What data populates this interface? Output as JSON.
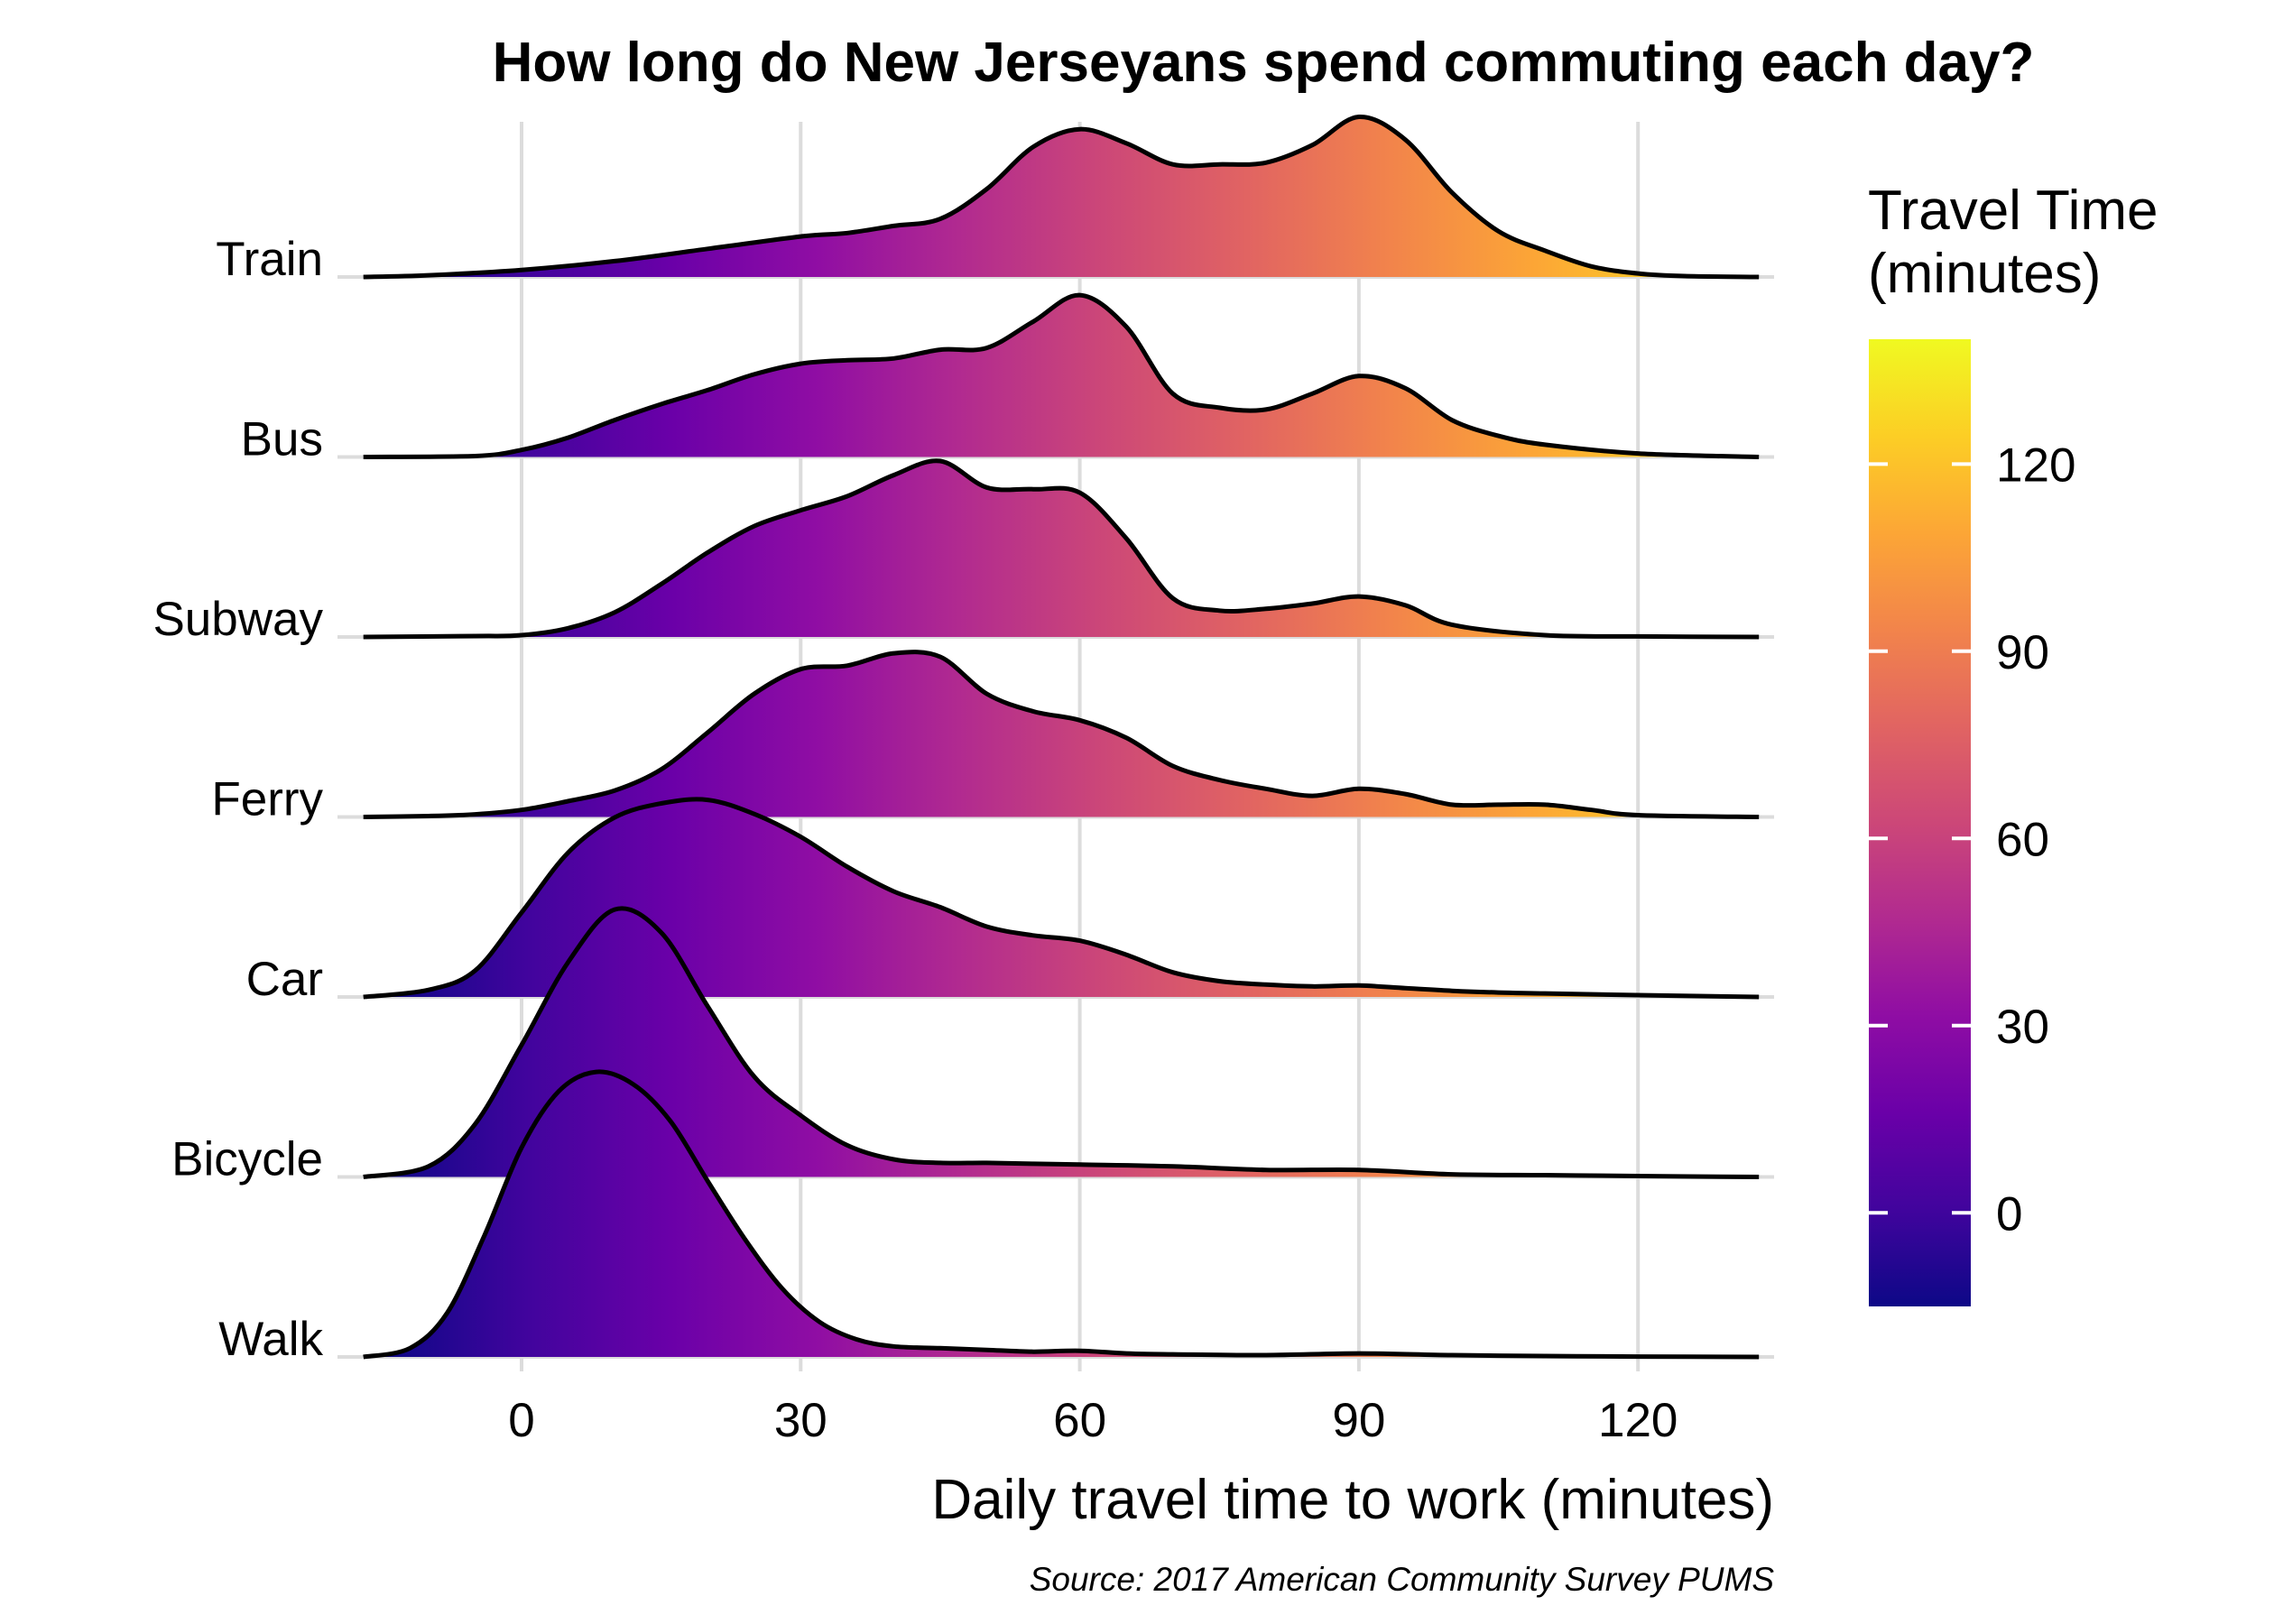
{
  "chart_data": {
    "type": "ridgeline",
    "title": "How long do New Jerseyans spend commuting each day?",
    "xlabel": "Daily travel time to work (minutes)",
    "ylabel": "",
    "caption": "Source: 2017 American Community Survey PUMS",
    "xlim": [
      -17,
      133
    ],
    "x_ticks": [
      0,
      30,
      60,
      90,
      120
    ],
    "x_tick_labels": [
      "0",
      "30",
      "60",
      "90",
      "120"
    ],
    "grid": true,
    "categories": [
      "Train",
      "Bus",
      "Subway",
      "Ferry",
      "Car",
      "Bicycle",
      "Walk"
    ],
    "series": [
      {
        "name": "Train",
        "x": [
          -17,
          -10,
          0,
          10,
          20,
          30,
          35,
          40,
          45,
          50,
          55,
          60,
          65,
          70,
          75,
          80,
          85,
          90,
          95,
          100,
          105,
          110,
          115,
          120,
          125,
          133
        ],
        "y": [
          0,
          0.01,
          0.04,
          0.09,
          0.16,
          0.23,
          0.25,
          0.29,
          0.33,
          0.5,
          0.74,
          0.84,
          0.76,
          0.64,
          0.64,
          0.65,
          0.75,
          0.91,
          0.78,
          0.48,
          0.26,
          0.15,
          0.06,
          0.02,
          0.005,
          0
        ]
      },
      {
        "name": "Bus",
        "x": [
          -17,
          -5,
          0,
          5,
          10,
          15,
          20,
          25,
          30,
          35,
          40,
          45,
          50,
          55,
          60,
          65,
          70,
          75,
          80,
          85,
          90,
          95,
          100,
          105,
          110,
          120,
          133
        ],
        "y": [
          0,
          0.005,
          0.04,
          0.11,
          0.21,
          0.3,
          0.38,
          0.47,
          0.53,
          0.55,
          0.56,
          0.61,
          0.62,
          0.77,
          0.92,
          0.74,
          0.36,
          0.28,
          0.27,
          0.36,
          0.46,
          0.39,
          0.21,
          0.12,
          0.07,
          0.02,
          0
        ]
      },
      {
        "name": "Subway",
        "x": [
          -17,
          -5,
          0,
          5,
          10,
          15,
          20,
          25,
          30,
          35,
          40,
          45,
          50,
          55,
          60,
          65,
          70,
          75,
          80,
          85,
          90,
          95,
          100,
          110,
          120,
          133
        ],
        "y": [
          0,
          0.005,
          0.01,
          0.05,
          0.14,
          0.3,
          0.48,
          0.63,
          0.72,
          0.8,
          0.92,
          1.0,
          0.85,
          0.84,
          0.82,
          0.56,
          0.22,
          0.15,
          0.16,
          0.19,
          0.23,
          0.18,
          0.07,
          0.01,
          0.003,
          0
        ]
      },
      {
        "name": "Ferry",
        "x": [
          -17,
          -10,
          -5,
          0,
          5,
          10,
          15,
          20,
          25,
          30,
          35,
          40,
          45,
          50,
          55,
          60,
          65,
          70,
          75,
          80,
          85,
          90,
          95,
          100,
          105,
          110,
          115,
          120,
          133
        ],
        "y": [
          0,
          0.005,
          0.015,
          0.04,
          0.09,
          0.15,
          0.27,
          0.48,
          0.7,
          0.84,
          0.86,
          0.93,
          0.91,
          0.7,
          0.6,
          0.55,
          0.45,
          0.29,
          0.21,
          0.16,
          0.12,
          0.16,
          0.13,
          0.07,
          0.07,
          0.07,
          0.04,
          0.01,
          0
        ]
      },
      {
        "name": "Car",
        "x": [
          -17,
          -10,
          -5,
          0,
          5,
          10,
          15,
          20,
          25,
          30,
          35,
          40,
          45,
          50,
          55,
          60,
          65,
          70,
          75,
          80,
          85,
          90,
          95,
          100,
          105,
          110,
          120,
          133
        ],
        "y": [
          0,
          0.04,
          0.15,
          0.48,
          0.82,
          1.02,
          1.1,
          1.12,
          1.04,
          0.91,
          0.74,
          0.6,
          0.51,
          0.4,
          0.35,
          0.32,
          0.24,
          0.14,
          0.09,
          0.07,
          0.06,
          0.065,
          0.05,
          0.035,
          0.025,
          0.02,
          0.01,
          0
        ]
      },
      {
        "name": "Bicycle",
        "x": [
          -17,
          -10,
          -5,
          0,
          5,
          10,
          15,
          20,
          25,
          30,
          35,
          40,
          45,
          50,
          55,
          60,
          70,
          80,
          90,
          100,
          110,
          120,
          133
        ],
        "y": [
          0,
          0.06,
          0.3,
          0.75,
          1.22,
          1.52,
          1.39,
          0.97,
          0.57,
          0.35,
          0.18,
          0.1,
          0.08,
          0.08,
          0.075,
          0.07,
          0.06,
          0.04,
          0.04,
          0.015,
          0.01,
          0.005,
          0
        ]
      },
      {
        "name": "Walk",
        "x": [
          -17,
          -12,
          -8,
          -4,
          0,
          4,
          8,
          12,
          16,
          20,
          24,
          28,
          32,
          36,
          40,
          45,
          50,
          55,
          60,
          65,
          70,
          80,
          90,
          100,
          110,
          120,
          133
        ],
        "y": [
          0,
          0.05,
          0.25,
          0.69,
          1.19,
          1.51,
          1.62,
          1.55,
          1.34,
          1.0,
          0.67,
          0.39,
          0.2,
          0.1,
          0.06,
          0.05,
          0.04,
          0.03,
          0.035,
          0.02,
          0.015,
          0.01,
          0.02,
          0.01,
          0.005,
          0.002,
          0
        ]
      }
    ],
    "legend": {
      "title": "Travel Time\n(minutes)",
      "title_lines": [
        "Travel Time",
        "(minutes)"
      ],
      "position": "right",
      "range": [
        -15,
        140
      ],
      "ticks": [
        0,
        30,
        60,
        90,
        120
      ],
      "tick_labels": [
        "0",
        "30",
        "60",
        "90",
        "120"
      ],
      "colormap": "plasma",
      "color_stops": [
        "#0d0887",
        "#41049d",
        "#6a00a8",
        "#8f0da4",
        "#b12a90",
        "#cc4778",
        "#e16462",
        "#f2844b",
        "#fca636",
        "#fcce25",
        "#f0f921"
      ]
    }
  }
}
